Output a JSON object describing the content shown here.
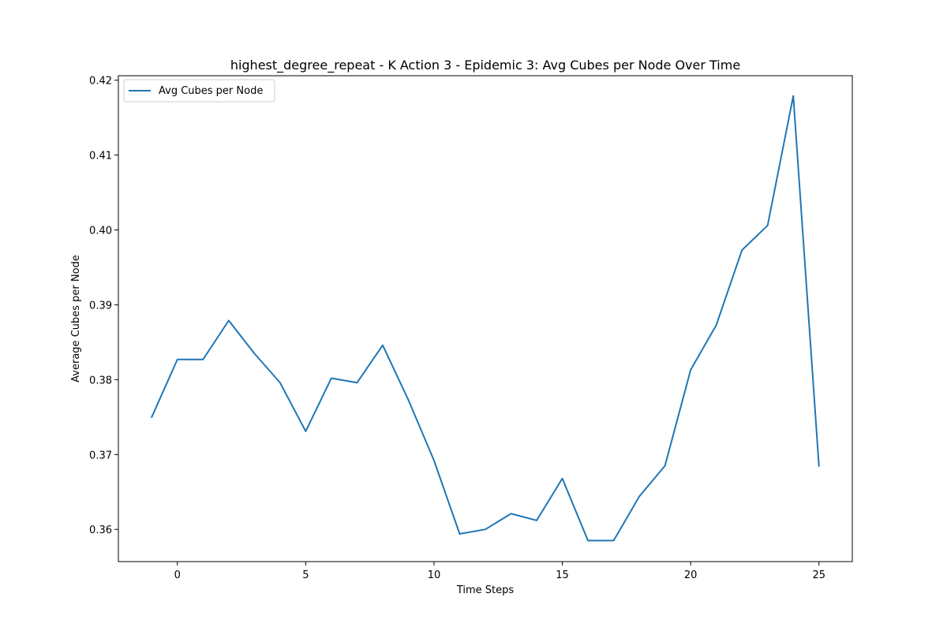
{
  "chart_data": {
    "type": "line",
    "title": "highest_degree_repeat - K Action 3 - Epidemic 3: Avg Cubes per Node Over Time",
    "xlabel": "Time Steps",
    "ylabel": "Average Cubes per Node",
    "xlim": [
      -2.3,
      26.3
    ],
    "ylim": [
      0.3557,
      0.4206
    ],
    "x_ticks": [
      0,
      5,
      10,
      15,
      20,
      25
    ],
    "x_tick_labels": [
      "0",
      "5",
      "10",
      "15",
      "20",
      "25"
    ],
    "y_ticks": [
      0.36,
      0.37,
      0.38,
      0.39,
      0.4,
      0.41,
      0.42
    ],
    "y_tick_labels": [
      "0.36",
      "0.37",
      "0.38",
      "0.39",
      "0.40",
      "0.41",
      "0.42"
    ],
    "grid": false,
    "legend_position": "top-left",
    "series": [
      {
        "name": "Avg Cubes per Node",
        "color": "#1f77b4",
        "x": [
          -1,
          0,
          1,
          2,
          3,
          4,
          5,
          6,
          7,
          8,
          9,
          10,
          11,
          12,
          13,
          14,
          15,
          16,
          17,
          18,
          19,
          20,
          21,
          22,
          23,
          24,
          25
        ],
        "y": [
          0.375,
          0.3827,
          0.3827,
          0.3879,
          0.3835,
          0.3796,
          0.3731,
          0.3802,
          0.3796,
          0.3846,
          0.3773,
          0.3692,
          0.3594,
          0.36,
          0.3621,
          0.3612,
          0.3668,
          0.3585,
          0.3585,
          0.3644,
          0.3685,
          0.3813,
          0.3873,
          0.3973,
          0.4006,
          0.4179,
          0.3685
        ]
      }
    ]
  }
}
